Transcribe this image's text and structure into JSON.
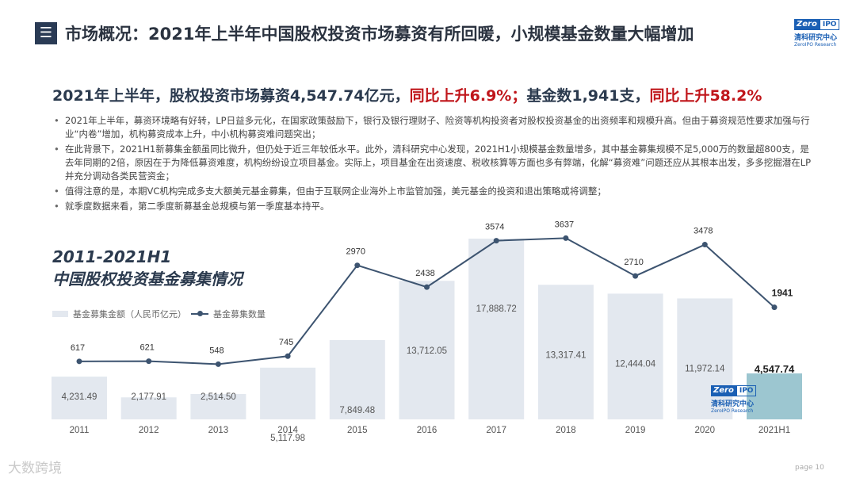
{
  "header": {
    "title": "市场概况：2021年上半年中国股权投资市场募资有所回暖，小规模基金数量大幅增加",
    "logo": {
      "zero": "Zero",
      "ipo": "IPO",
      "cn": "清科研究中心",
      "en": "ZeroIPO Research"
    }
  },
  "headline": {
    "part1": "2021年上半年，股权投资市场募资4,547.74亿元，",
    "part2": "同比上升6.9%；",
    "part3": "基金数1,941支，",
    "part4": "同比上升58.2%"
  },
  "bullets": [
    "2021年上半年，募资环境略有好转，LP日益多元化，在国家政策鼓励下，银行及银行理财子、险资等机构投资者对股权投资基金的出资频率和规模升高。但由于募资规范性要求加强与行业“内卷”增加，机构募资成本上升，中小机构募资难问题突出；",
    "在此背景下，2021H1新募集金额虽同比微升，但仍处于近三年较低水平。此外，清科研究中心发现，2021H1小规模基金数量增多，其中基金募集规模不足5,000万的数量超800支，是去年同期的2倍，原因在于为降低募资难度，机构纷纷设立项目基金。实际上，项目基金在出资速度、税收核算等方面也多有弊端，化解“募资难”问题还应从其根本出发，多多挖掘潜在LP并充分调动各类民营资金；",
    "值得注意的是，本期VC机构完成多支大额美元基金募集，但由于互联网企业海外上市监管加强，美元基金的投资和退出策略或将调整；",
    "就季度数据来看，第二季度新募基金总规模与第一季度基本持平。"
  ],
  "watermark": {
    "text": "大数跨境",
    "page": "page  10"
  },
  "colors": {
    "bar": "#e3e8ef",
    "bar_highlight": "#9cc6d0",
    "line": "#3d5470",
    "red": "#c0161b",
    "title": "#2b3a4e"
  },
  "chart_data": {
    "type": "bar",
    "title_line1": "2011-2021H1",
    "title_line2": "中国股权投资基金募集情况",
    "categories": [
      "2011",
      "2012",
      "2013",
      "2014",
      "2015",
      "2016",
      "2017",
      "2018",
      "2019",
      "2020",
      "2021H1"
    ],
    "series": [
      {
        "name": "基金募集金额（人民币亿元）",
        "type": "bar",
        "values": [
          4231.49,
          2177.91,
          2514.5,
          5117.98,
          7849.48,
          13712.05,
          17888.72,
          13317.41,
          12444.04,
          11972.14,
          4547.74
        ],
        "labels": [
          "4,231.49",
          "2,177.91",
          "2,514.50",
          "5,117.98",
          "7,849.48",
          "13,712.05",
          "17,888.72",
          "13,317.41",
          "12,444.04",
          "11,972.14",
          "4,547.74"
        ]
      },
      {
        "name": "基金募集数量",
        "type": "line",
        "values": [
          617,
          621,
          548,
          745,
          2970,
          2438,
          3574,
          3637,
          2710,
          3478,
          1941
        ]
      }
    ],
    "highlight_index": 10,
    "legend": "left"
  }
}
